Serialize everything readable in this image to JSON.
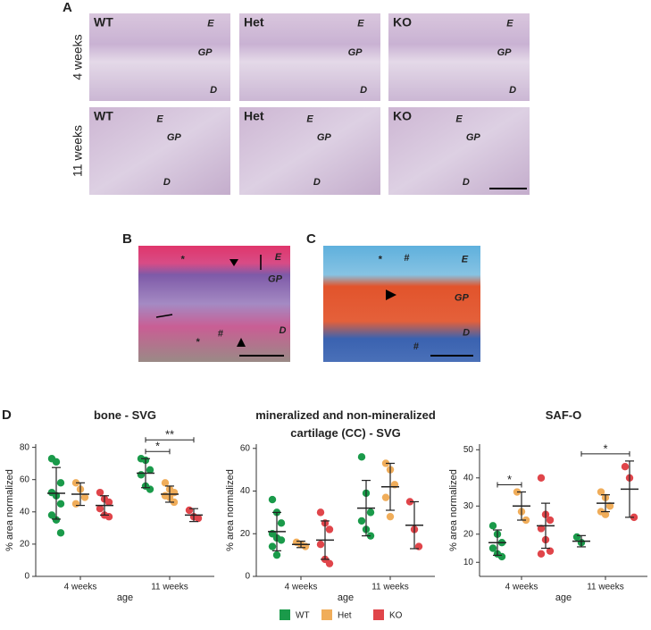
{
  "figure": {
    "panel_a": {
      "label": "A",
      "rows": [
        {
          "label": "4 weeks",
          "images": [
            {
              "genotype": "WT",
              "zones": [
                "E",
                "GP",
                "D"
              ]
            },
            {
              "genotype": "Het",
              "zones": [
                "E",
                "GP",
                "D"
              ]
            },
            {
              "genotype": "KO",
              "zones": [
                "E",
                "GP",
                "D"
              ]
            }
          ]
        },
        {
          "label": "11 weeks",
          "images": [
            {
              "genotype": "WT",
              "zones": [
                "E",
                "GP",
                "D"
              ]
            },
            {
              "genotype": "Het",
              "zones": [
                "E",
                "GP",
                "D"
              ]
            },
            {
              "genotype": "KO",
              "zones": [
                "E",
                "GP",
                "D"
              ]
            }
          ]
        }
      ]
    },
    "panel_b": {
      "label": "B",
      "marks": [
        "*",
        "E",
        "GP",
        "*",
        "#",
        "D"
      ]
    },
    "panel_c": {
      "label": "C",
      "marks": [
        "*",
        "#",
        "E",
        "GP",
        "#",
        "D"
      ]
    },
    "panel_d": {
      "label": "D"
    }
  },
  "chart_data": [
    {
      "type": "dot",
      "title": "bone - SVG",
      "ylabel": "% area normalized",
      "xlabel": "age",
      "categories": [
        "4 weeks",
        "11 weeks"
      ],
      "ylim": [
        0,
        82
      ],
      "yticks": [
        0,
        20,
        40,
        60,
        80
      ],
      "series": [
        {
          "name": "WT",
          "color": "#1a9a4a",
          "values": [
            [
              73,
              71,
              58,
              52,
              50,
              45,
              38,
              35,
              27
            ],
            [
              73,
              72,
              66,
              63,
              56,
              54
            ]
          ],
          "mean": [
            51.5,
            64
          ],
          "sd": [
            16,
            9
          ]
        },
        {
          "name": "Het",
          "color": "#f0ad5a",
          "values": [
            [
              58,
              54,
              49,
              45
            ],
            [
              58,
              54,
              52,
              50,
              49,
              46
            ]
          ],
          "mean": [
            51,
            51
          ],
          "sd": [
            7,
            5
          ]
        },
        {
          "name": "KO",
          "color": "#e0454a",
          "values": [
            [
              52,
              48,
              46,
              42,
              38,
              37
            ],
            [
              41,
              37,
              36
            ]
          ],
          "mean": [
            44,
            38
          ],
          "sd": [
            6,
            4
          ]
        }
      ],
      "significance": [
        {
          "label": "*",
          "category": "11 weeks",
          "between": [
            "WT",
            "Het"
          ]
        },
        {
          "label": "**",
          "category": "11 weeks",
          "between": [
            "WT",
            "KO"
          ]
        }
      ]
    },
    {
      "type": "dot",
      "title": "mineralized and non-mineralized cartilage (CC) - SVG",
      "ylabel": "% area normalized",
      "xlabel": "age",
      "categories": [
        "4 weeks",
        "11 weeks"
      ],
      "ylim": [
        0,
        62
      ],
      "yticks": [
        0,
        20,
        40,
        60
      ],
      "series": [
        {
          "name": "WT",
          "color": "#1a9a4a",
          "values": [
            [
              36,
              30,
              25,
              20,
              18,
              17,
              14,
              10
            ],
            [
              56,
              39,
              30,
              26,
              22,
              19
            ]
          ],
          "mean": [
            21,
            32
          ],
          "sd": [
            9,
            13
          ]
        },
        {
          "name": "Het",
          "color": "#f0ad5a",
          "values": [
            [
              16,
              15,
              14
            ],
            [
              53,
              50,
              43,
              37,
              28
            ]
          ],
          "mean": [
            15,
            42
          ],
          "sd": [
            1.5,
            11
          ]
        },
        {
          "name": "KO",
          "color": "#e0454a",
          "values": [
            [
              30,
              25,
              22,
              15,
              8,
              6
            ],
            [
              35,
              22,
              14
            ]
          ],
          "mean": [
            17,
            24
          ],
          "sd": [
            9,
            11
          ]
        }
      ],
      "significance": []
    },
    {
      "type": "dot",
      "title": "SAF-O",
      "ylabel": "% area normalized",
      "xlabel": "age",
      "categories": [
        "4 weeks",
        "11 weeks"
      ],
      "ylim": [
        5,
        52
      ],
      "yticks": [
        10,
        20,
        30,
        40,
        50
      ],
      "series": [
        {
          "name": "WT",
          "color": "#1a9a4a",
          "values": [
            [
              23,
              20,
              17,
              15,
              13,
              12
            ],
            [
              19,
              17
            ]
          ],
          "mean": [
            17,
            17.5
          ],
          "sd": [
            4.5,
            2
          ]
        },
        {
          "name": "Het",
          "color": "#f0ad5a",
          "values": [
            [
              35,
              28,
              25
            ],
            [
              35,
              33,
              30,
              28,
              27
            ]
          ],
          "mean": [
            30,
            31
          ],
          "sd": [
            5,
            3
          ]
        },
        {
          "name": "KO",
          "color": "#e0454a",
          "values": [
            [
              40,
              27,
              25,
              22,
              18,
              14,
              13
            ],
            [
              44,
              40,
              26
            ]
          ],
          "mean": [
            23,
            36
          ],
          "sd": [
            8,
            10
          ]
        }
      ],
      "significance": [
        {
          "label": "*",
          "category": "4 weeks",
          "between": [
            "WT",
            "Het"
          ]
        },
        {
          "label": "*",
          "category": "11 weeks",
          "between": [
            "WT",
            "KO"
          ]
        }
      ]
    }
  ]
}
